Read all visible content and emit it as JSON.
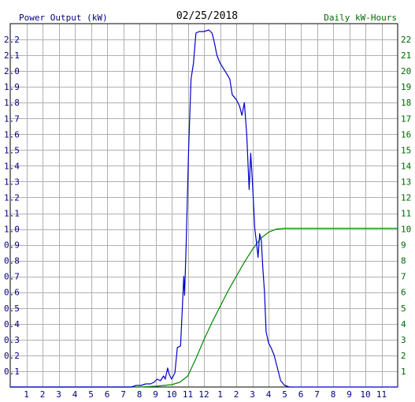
{
  "chart_data": {
    "type": "line",
    "title": "02/25/2018",
    "left_axis_label": "Power Output (kW)",
    "right_axis_label": "Daily kW-Hours",
    "x_tick_labels": [
      "1",
      "2",
      "3",
      "4",
      "5",
      "6",
      "7",
      "8",
      "9",
      "10",
      "11",
      "12",
      "1",
      "2",
      "3",
      "4",
      "5",
      "6",
      "7",
      "8",
      "9",
      "10",
      "11"
    ],
    "x_range_hours": [
      0,
      24
    ],
    "y_left_range": [
      0,
      2.3
    ],
    "y_left_ticks": [
      "0.1",
      "0.2",
      "0.3",
      "0.4",
      "0.5",
      "0.6",
      "0.7",
      "0.8",
      "0.9",
      "1.0",
      "1.1",
      "1.2",
      "1.3",
      "1.4",
      "1.5",
      "1.6",
      "1.7",
      "1.8",
      "1.9",
      "2.0",
      "2.1",
      "2.2"
    ],
    "y_right_range": [
      0,
      23
    ],
    "y_right_ticks": [
      "1",
      "2",
      "3",
      "4",
      "5",
      "6",
      "7",
      "8",
      "9",
      "10",
      "11",
      "12",
      "13",
      "14",
      "15",
      "16",
      "17",
      "18",
      "19",
      "20",
      "21",
      "22"
    ],
    "grid": true,
    "colors": {
      "power": "#0000cc",
      "energy": "#008800",
      "grid": "#b0b0b0",
      "axis_text_left": "#000080",
      "axis_text_right": "#006600"
    },
    "series": [
      {
        "name": "Power Output (kW)",
        "axis": "left",
        "points": [
          [
            0,
            0
          ],
          [
            7.5,
            0
          ],
          [
            7.8,
            0.01
          ],
          [
            8.1,
            0.01
          ],
          [
            8.4,
            0.02
          ],
          [
            8.7,
            0.02
          ],
          [
            8.9,
            0.03
          ],
          [
            9.1,
            0.05
          ],
          [
            9.3,
            0.04
          ],
          [
            9.5,
            0.07
          ],
          [
            9.6,
            0.05
          ],
          [
            9.75,
            0.12
          ],
          [
            9.85,
            0.08
          ],
          [
            10.0,
            0.05
          ],
          [
            10.2,
            0.09
          ],
          [
            10.35,
            0.25
          ],
          [
            10.55,
            0.26
          ],
          [
            10.75,
            0.7
          ],
          [
            10.8,
            0.58
          ],
          [
            10.9,
            0.9
          ],
          [
            11.05,
            1.5
          ],
          [
            11.2,
            1.95
          ],
          [
            11.35,
            2.05
          ],
          [
            11.5,
            2.24
          ],
          [
            11.7,
            2.25
          ],
          [
            12.0,
            2.25
          ],
          [
            12.3,
            2.26
          ],
          [
            12.5,
            2.24
          ],
          [
            12.65,
            2.18
          ],
          [
            12.8,
            2.1
          ],
          [
            13.0,
            2.05
          ],
          [
            13.3,
            2.0
          ],
          [
            13.6,
            1.95
          ],
          [
            13.75,
            1.85
          ],
          [
            14.0,
            1.82
          ],
          [
            14.2,
            1.78
          ],
          [
            14.35,
            1.72
          ],
          [
            14.5,
            1.8
          ],
          [
            14.65,
            1.6
          ],
          [
            14.8,
            1.25
          ],
          [
            14.9,
            1.48
          ],
          [
            15.0,
            1.3
          ],
          [
            15.15,
            1.0
          ],
          [
            15.25,
            0.92
          ],
          [
            15.35,
            0.82
          ],
          [
            15.45,
            0.97
          ],
          [
            15.55,
            0.93
          ],
          [
            15.65,
            0.75
          ],
          [
            15.75,
            0.6
          ],
          [
            15.85,
            0.35
          ],
          [
            16.0,
            0.28
          ],
          [
            16.15,
            0.25
          ],
          [
            16.35,
            0.2
          ],
          [
            16.55,
            0.12
          ],
          [
            16.75,
            0.04
          ],
          [
            17.0,
            0.01
          ],
          [
            17.3,
            0
          ],
          [
            24,
            0
          ]
        ]
      },
      {
        "name": "Daily kW-Hours",
        "axis": "right",
        "points": [
          [
            0,
            0
          ],
          [
            8,
            0
          ],
          [
            9,
            0.05
          ],
          [
            10,
            0.15
          ],
          [
            10.5,
            0.3
          ],
          [
            11,
            0.7
          ],
          [
            11.5,
            1.8
          ],
          [
            12,
            3.0
          ],
          [
            12.5,
            4.1
          ],
          [
            13,
            5.1
          ],
          [
            13.5,
            6.1
          ],
          [
            14,
            7.0
          ],
          [
            14.5,
            7.9
          ],
          [
            15,
            8.7
          ],
          [
            15.5,
            9.4
          ],
          [
            16,
            9.8
          ],
          [
            16.5,
            10.0
          ],
          [
            17,
            10.05
          ],
          [
            24,
            10.05
          ]
        ]
      }
    ]
  }
}
